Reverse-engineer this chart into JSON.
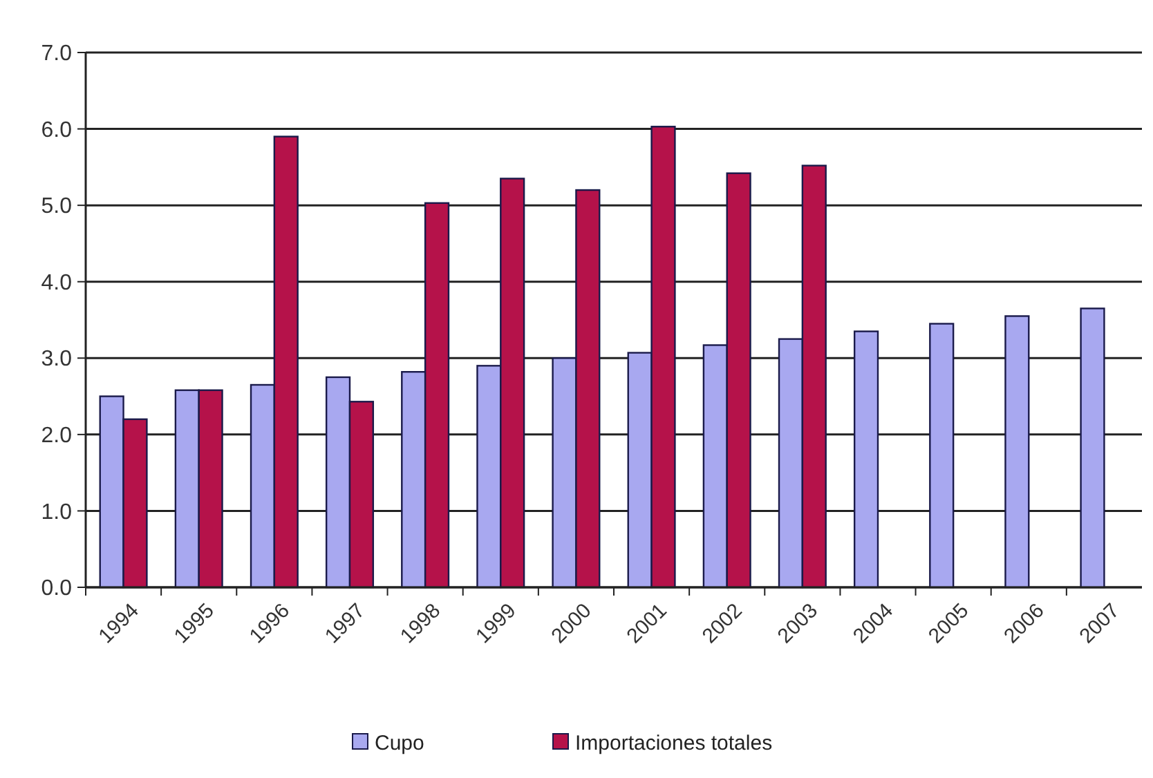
{
  "chart_data": {
    "type": "bar",
    "categories": [
      "1994",
      "1995",
      "1996",
      "1997",
      "1998",
      "1999",
      "2000",
      "2001",
      "2002",
      "2003",
      "2004",
      "2005",
      "2006",
      "2007"
    ],
    "series": [
      {
        "name": "Cupo",
        "color": "#a8a8f0",
        "values": [
          2.5,
          2.58,
          2.65,
          2.75,
          2.82,
          2.9,
          3.0,
          3.07,
          3.17,
          3.25,
          3.35,
          3.45,
          3.55,
          3.65
        ]
      },
      {
        "name": "Importaciones totales",
        "color": "#b5124a",
        "values": [
          2.2,
          2.58,
          5.9,
          2.43,
          5.03,
          5.35,
          5.2,
          6.03,
          5.42,
          5.52,
          null,
          null,
          null,
          null
        ]
      }
    ],
    "ylim": [
      0,
      7
    ],
    "yticks": [
      {
        "value": 0,
        "label": "0.0"
      },
      {
        "value": 1,
        "label": "1.0"
      },
      {
        "value": 2,
        "label": "2.0"
      },
      {
        "value": 3,
        "label": "3.0"
      },
      {
        "value": 4,
        "label": "4.0"
      },
      {
        "value": 5,
        "label": "5.0"
      },
      {
        "value": 6,
        "label": "6.0"
      },
      {
        "value": 7,
        "label": "7.0"
      }
    ],
    "grid": "y",
    "legend": "bottom"
  }
}
